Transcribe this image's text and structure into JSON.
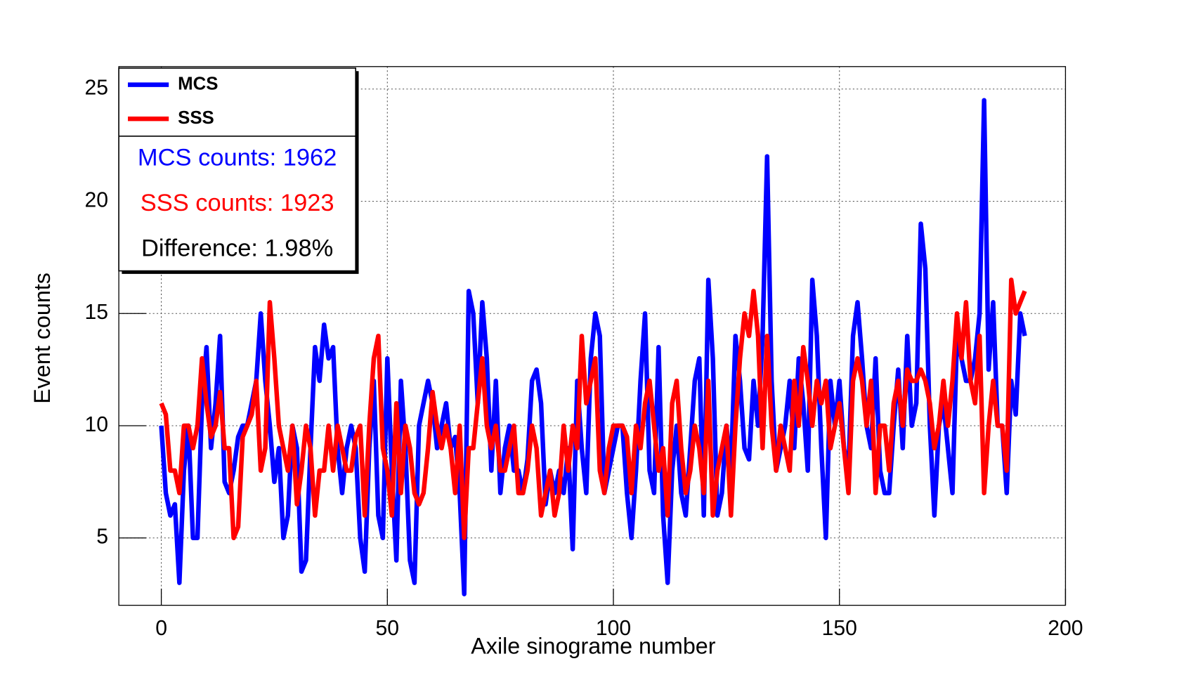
{
  "chart_data": {
    "type": "line",
    "x_label": "Axile sinograme number",
    "y_label": "Event counts",
    "xlim": [
      -9.4,
      200
    ],
    "ylim": [
      2,
      26
    ],
    "xticks": [
      0,
      50,
      100,
      150,
      200
    ],
    "yticks": [
      5,
      10,
      15,
      20,
      25
    ],
    "grid": true,
    "legend": "top-left",
    "x": [
      0,
      1,
      2,
      3,
      4,
      5,
      6,
      7,
      8,
      9,
      10,
      11,
      12,
      13,
      14,
      15,
      16,
      17,
      18,
      19,
      20,
      21,
      22,
      23,
      24,
      25,
      26,
      27,
      28,
      29,
      30,
      31,
      32,
      33,
      34,
      35,
      36,
      37,
      38,
      39,
      40,
      41,
      42,
      43,
      44,
      45,
      46,
      47,
      48,
      49,
      50,
      51,
      52,
      53,
      54,
      55,
      56,
      57,
      58,
      59,
      60,
      61,
      62,
      63,
      64,
      65,
      66,
      67,
      68,
      69,
      70,
      71,
      72,
      73,
      74,
      75,
      76,
      77,
      78,
      79,
      80,
      81,
      82,
      83,
      84,
      85,
      86,
      87,
      88,
      89,
      90,
      91,
      92,
      93,
      94,
      95,
      96,
      97,
      98,
      99,
      100,
      101,
      102,
      103,
      104,
      105,
      106,
      107,
      108,
      109,
      110,
      111,
      112,
      113,
      114,
      115,
      116,
      117,
      118,
      119,
      120,
      121,
      122,
      123,
      124,
      125,
      126,
      127,
      128,
      129,
      130,
      131,
      132,
      133,
      134,
      135,
      136,
      137,
      138,
      139,
      140,
      141,
      142,
      143,
      144,
      145,
      146,
      147,
      148,
      149,
      150,
      151,
      152,
      153,
      154,
      155,
      156,
      157,
      158,
      159,
      160,
      161,
      162,
      163,
      164,
      165,
      166,
      167,
      168,
      169,
      170,
      171,
      172,
      173,
      174,
      175,
      176,
      177,
      178,
      179,
      180,
      181,
      182,
      183,
      184,
      185,
      186,
      187,
      188,
      189,
      190,
      191
    ],
    "series": [
      {
        "name": "MCS",
        "color": "#0000ff",
        "values": [
          10,
          7,
          6,
          6.5,
          3,
          8,
          10,
          5,
          5,
          11,
          13.5,
          9,
          11,
          14,
          7.5,
          7,
          8,
          9.5,
          10,
          10,
          11,
          12,
          15,
          12,
          10,
          7.5,
          9,
          5,
          6,
          10,
          9,
          3.5,
          4,
          9,
          13.5,
          12,
          14.5,
          13,
          13.5,
          9,
          7,
          9,
          10,
          9,
          5,
          3.5,
          9,
          12,
          6,
          5,
          13,
          8,
          4,
          12,
          9,
          4,
          3,
          10,
          11,
          12,
          11,
          9,
          10,
          11,
          9,
          9.5,
          7,
          2.5,
          16,
          15,
          11,
          15.5,
          13,
          8,
          12,
          7,
          9,
          10,
          8,
          8,
          7,
          8.5,
          12,
          12.5,
          11,
          6.5,
          8,
          7,
          8,
          7,
          9,
          4.5,
          12,
          9,
          7,
          13,
          15,
          14,
          7,
          8,
          9,
          10,
          10,
          7,
          5,
          8,
          12,
          15,
          8,
          7,
          13.5,
          6,
          3,
          8,
          10,
          7,
          6,
          9,
          12,
          13,
          6,
          16.5,
          13,
          6,
          7,
          10,
          8,
          14,
          12,
          9,
          8.5,
          12,
          10,
          14,
          22,
          12,
          8,
          9,
          10,
          12,
          9,
          13,
          11,
          8,
          16.5,
          14,
          9,
          5,
          12,
          10,
          12,
          9,
          8,
          14,
          15.5,
          13,
          10,
          9,
          13,
          8,
          7,
          7,
          10,
          12.5,
          9,
          14,
          10,
          11,
          19,
          17,
          10,
          6,
          10,
          11,
          9,
          7,
          14,
          13,
          12,
          12,
          13,
          15,
          24.5,
          12.5,
          15.5,
          10,
          10,
          7,
          12,
          10.5,
          15,
          14
        ]
      },
      {
        "name": "SSS",
        "color": "#ff0000",
        "values": [
          11,
          10.5,
          8,
          8,
          7,
          10,
          10,
          9,
          10,
          13,
          11,
          9.5,
          10,
          11.5,
          9,
          9,
          5,
          5.5,
          9.5,
          10,
          10.5,
          12,
          8,
          9,
          15.5,
          13,
          10,
          9,
          8,
          10,
          6.5,
          8,
          10,
          9,
          6,
          8,
          8,
          10,
          8,
          10,
          9,
          8,
          8,
          9.5,
          10,
          6,
          10,
          13,
          14,
          9,
          8,
          6,
          11,
          7,
          10,
          9,
          7,
          6.5,
          7,
          9,
          11.5,
          10,
          9,
          10,
          9,
          7,
          10,
          5,
          9,
          9,
          11,
          13,
          10,
          9,
          10,
          8,
          8,
          9,
          10,
          7,
          7,
          8,
          10,
          9,
          6,
          7,
          8,
          6,
          7,
          10,
          8,
          10,
          9,
          14,
          11,
          12,
          13,
          8,
          7,
          9,
          10,
          10,
          10,
          9.5,
          7,
          10,
          9,
          11,
          12,
          10,
          8,
          9,
          6,
          11,
          12,
          9,
          7,
          8,
          10,
          9,
          7,
          12,
          6,
          8,
          9,
          10,
          6,
          10,
          13,
          15,
          14,
          16,
          14,
          9,
          14,
          10,
          8,
          10,
          9,
          8,
          12,
          10,
          13.5,
          12,
          10,
          12,
          11,
          12,
          9,
          10,
          11,
          9,
          7,
          12,
          13,
          12,
          10,
          12,
          7,
          10,
          10,
          8,
          11,
          12,
          10,
          12.5,
          12,
          12,
          12.5,
          12,
          11,
          9,
          10,
          12,
          10,
          12,
          15,
          13,
          15.5,
          12,
          11,
          14,
          7,
          10,
          12,
          10,
          10,
          8,
          16.5,
          15,
          15.5,
          16
        ]
      }
    ],
    "annotations": [
      {
        "text": "MCS counts: 1962",
        "color": "#0000ff"
      },
      {
        "text": "SSS counts: 1923",
        "color": "#ff0000"
      },
      {
        "text": "Difference: 1.98%",
        "color": "#000000"
      }
    ]
  }
}
